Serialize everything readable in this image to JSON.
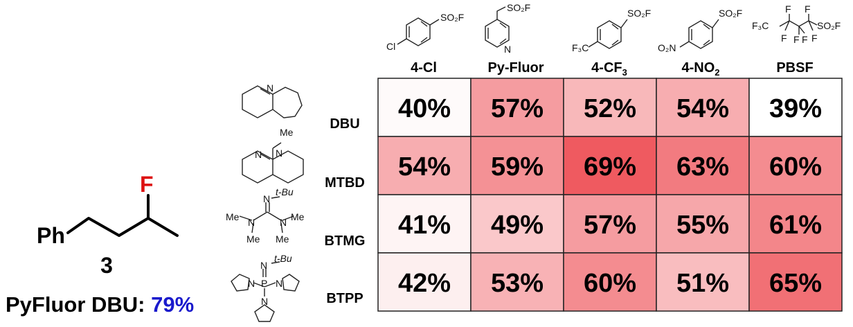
{
  "product": {
    "label_Ph": "Ph",
    "label_F": "F",
    "compound_number": "3",
    "ref_text": "PyFluor DBU: ",
    "ref_value": "79%",
    "ref_color": "#1a1acc",
    "fluorine_color": "#dd1111"
  },
  "reagents": [
    {
      "name": "4-Cl",
      "sub": "",
      "structure_labels": [
        "Cl",
        "SO₂F"
      ]
    },
    {
      "name": "Py-Fluor",
      "sub": "",
      "structure_labels": [
        "N",
        "SO₂F"
      ]
    },
    {
      "name": "4-CF",
      "sub": "3",
      "structure_labels": [
        "F₃C",
        "SO₂F"
      ]
    },
    {
      "name": "4-NO",
      "sub": "2",
      "structure_labels": [
        "O₂N",
        "SO₂F"
      ]
    },
    {
      "name": "PBSF",
      "sub": "",
      "structure_labels": [
        "F",
        "F",
        "F",
        "F",
        "F",
        "F",
        "F₃C",
        "SO₂F"
      ]
    }
  ],
  "bases": [
    {
      "name": "DBU",
      "structure_labels": [
        "N"
      ]
    },
    {
      "name": "MTBD",
      "structure_labels": [
        "Me",
        "N",
        "N"
      ]
    },
    {
      "name": "BTMG",
      "structure_labels": [
        "N",
        "t-Bu",
        "Me",
        "N",
        "N",
        "Me",
        "Me",
        "Me"
      ]
    },
    {
      "name": "BTPP",
      "structure_labels": [
        "N",
        "t-Bu",
        "N",
        "P",
        "N",
        "N"
      ]
    }
  ],
  "chart_data": {
    "type": "heatmap",
    "x_categories": [
      "4-Cl",
      "Py-Fluor",
      "4-CF3",
      "4-NO2",
      "PBSF"
    ],
    "y_categories": [
      "DBU",
      "MTBD",
      "BTMG",
      "BTPP"
    ],
    "values": [
      [
        40,
        57,
        52,
        54,
        39
      ],
      [
        54,
        59,
        69,
        63,
        60
      ],
      [
        41,
        49,
        57,
        55,
        61
      ],
      [
        42,
        53,
        60,
        51,
        65
      ]
    ],
    "value_suffix": "%",
    "color_low": "#ffffff",
    "color_high": "#ef5a60",
    "value_range": [
      39,
      69
    ]
  }
}
